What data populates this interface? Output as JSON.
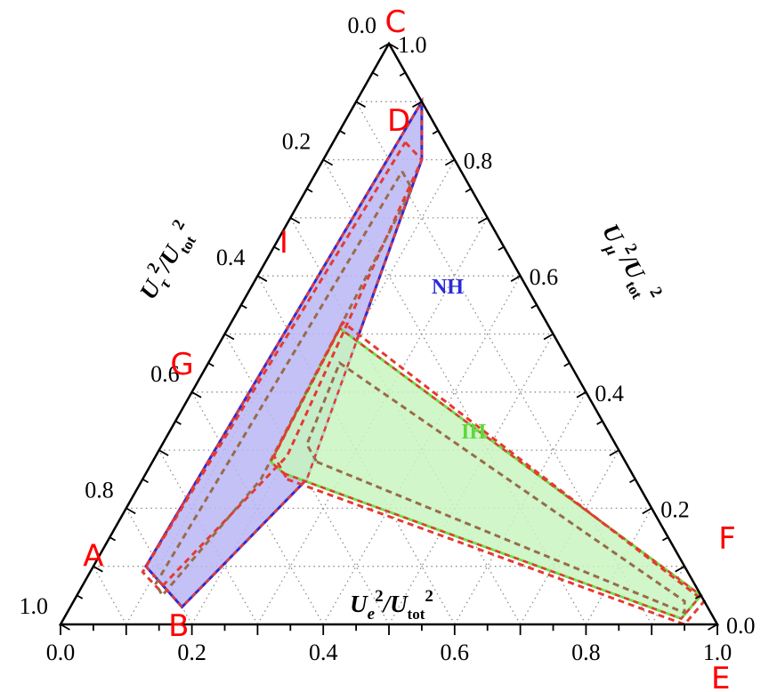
{
  "chart_data": {
    "type": "ternary",
    "axes": {
      "bottom": {
        "title": "Ue²/Utot²",
        "title_parts": [
          "U",
          "e",
          "2",
          "/U",
          "tot",
          "2"
        ],
        "ticks": [
          0.0,
          0.2,
          0.4,
          0.6,
          0.8,
          1.0
        ],
        "tick_labels": [
          "0.0",
          "0.2",
          "0.4",
          "0.6",
          "0.8",
          "1.0"
        ]
      },
      "left": {
        "title": "Uτ²/Utot²",
        "title_parts": [
          "U",
          "τ",
          "2",
          "/U",
          "tot",
          "2"
        ],
        "ticks": [
          0.0,
          0.2,
          0.4,
          0.6,
          0.8,
          1.0
        ],
        "tick_labels": [
          "0.0",
          "0.2",
          "0.4",
          "0.6",
          "0.8",
          "1.0"
        ]
      },
      "right": {
        "title": "Uμ²/Utot²",
        "title_parts": [
          "U",
          "μ",
          "2",
          "/U",
          "tot",
          "2"
        ],
        "ticks": [
          0.0,
          0.2,
          0.4,
          0.6,
          0.8,
          1.0
        ],
        "tick_labels": [
          "0.0",
          "0.2",
          "0.4",
          "0.6",
          "0.8",
          "1.0"
        ]
      }
    },
    "grid": true,
    "regions": [
      {
        "name": "NH",
        "fill": "#b9b6f5",
        "stroke": "#2b2bd6",
        "polygon_fe_fmu": [
          [
            0.08,
            0.1
          ],
          [
            0.17,
            0.03
          ],
          [
            0.25,
            0.25
          ],
          [
            0.15,
            0.8
          ],
          [
            0.1,
            0.9
          ]
        ],
        "inner_contours_fe_fmu": [
          [
            [
              0.11,
              0.83
            ],
            [
              0.15,
              0.8
            ],
            [
              0.2,
              0.29
            ],
            [
              0.12,
              0.06
            ],
            [
              0.08,
              0.09
            ],
            [
              0.11,
              0.83
            ]
          ],
          [
            [
              0.13,
              0.78
            ],
            [
              0.16,
              0.75
            ],
            [
              0.18,
              0.25
            ],
            [
              0.13,
              0.05
            ],
            [
              0.11,
              0.07
            ],
            [
              0.13,
              0.78
            ]
          ]
        ]
      },
      {
        "name": "IH",
        "fill": "#c8f5c0",
        "stroke": "#6fe04a",
        "polygon_fe_fmu": [
          [
            0.21,
            0.26
          ],
          [
            0.94,
            0.01
          ],
          [
            0.95,
            0.05
          ],
          [
            0.17,
            0.51
          ],
          [
            0.18,
            0.28
          ]
        ],
        "inner_contours_fe_fmu": [
          [
            [
              0.22,
              0.25
            ],
            [
              0.95,
              0.0
            ],
            [
              0.96,
              0.04
            ],
            [
              0.17,
              0.52
            ],
            [
              0.18,
              0.29
            ],
            [
              0.22,
              0.25
            ]
          ],
          [
            [
              0.25,
              0.28
            ],
            [
              0.94,
              0.02
            ],
            [
              0.93,
              0.04
            ],
            [
              0.2,
              0.45
            ],
            [
              0.22,
              0.31
            ],
            [
              0.25,
              0.28
            ]
          ]
        ]
      }
    ],
    "point_labels": [
      {
        "text": "A",
        "fe": 0.0,
        "fmu": 0.1
      },
      {
        "text": "B",
        "fe": 0.19,
        "fmu": -0.02
      },
      {
        "text": "C",
        "fe": 0.0,
        "fmu": 1.02
      },
      {
        "text": "D",
        "fe": 0.09,
        "fmu": 0.85
      },
      {
        "text": "E",
        "fe": 1.06,
        "fmu": -0.11
      },
      {
        "text": "F",
        "fe": 0.95,
        "fmu": 0.13
      },
      {
        "text": "G",
        "fe": -0.03,
        "fmu": 0.43
      },
      {
        "text": "I",
        "fe": 0.02,
        "fmu": 0.64
      }
    ],
    "colors": {
      "label_red": "#ff0000",
      "contour_red": "#e53a32",
      "contour_brown": "#9a6b4a",
      "nh_text": "#2b2bd6",
      "ih_text": "#5fd83a"
    }
  }
}
